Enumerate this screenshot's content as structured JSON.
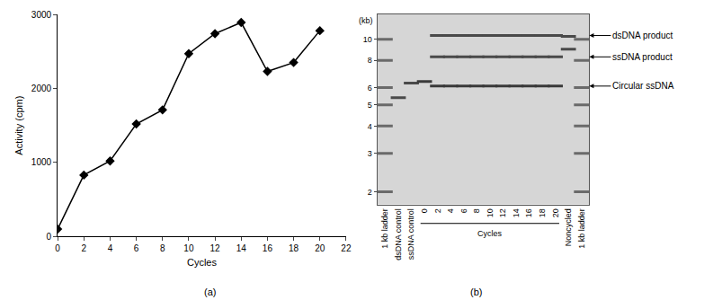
{
  "chart_data": [
    {
      "type": "line",
      "title": "(a)",
      "x": [
        0,
        2,
        4,
        6,
        8,
        10,
        12,
        14,
        16,
        18,
        20
      ],
      "values": [
        100,
        830,
        1020,
        1520,
        1710,
        2470,
        2740,
        2890,
        2230,
        2350,
        2780
      ],
      "xlim": [
        0,
        22
      ],
      "xticks": [
        0,
        2,
        4,
        6,
        8,
        10,
        12,
        14,
        16,
        18,
        20,
        22
      ],
      "ylim": [
        0,
        3000
      ],
      "yticks": [
        0,
        1000,
        2000,
        3000
      ],
      "xlabel": "Cycles",
      "ylabel": "Activity (cpm)",
      "color": "#000000",
      "marker": "diamond",
      "line_style": "solid",
      "grid": false
    },
    {
      "type": "gel",
      "title": "(b)",
      "categories": [
        "1 kb ladder",
        "dsDNA control",
        "ssDNA control",
        "0",
        "2",
        "4",
        "6",
        "8",
        "10",
        "12",
        "14",
        "16",
        "18",
        "20",
        "Noncycled",
        "1 kb ladder"
      ],
      "series": [
        {
          "values": [
            [
              10,
              8,
              6,
              5,
              4,
              3,
              2
            ],
            null,
            null,
            null,
            null,
            null,
            null,
            null,
            null,
            null,
            null,
            null,
            null,
            null,
            null,
            [
              10,
              8,
              6,
              5,
              4,
              3,
              2
            ]
          ],
          "color": "#6a6a6a",
          "marker": "line-ew"
        },
        {
          "values": [
            null,
            5.4,
            6.3,
            null,
            null,
            null,
            null,
            null,
            null,
            null,
            null,
            null,
            null,
            null,
            [
              10.3,
              9.0
            ],
            null
          ],
          "color": "#4a4a4a",
          "marker": "line-ew"
        },
        {
          "name": "dsDNA product",
          "values": [
            null,
            null,
            null,
            null,
            10.4,
            10.4,
            10.4,
            10.4,
            10.4,
            10.4,
            10.4,
            10.4,
            10.4,
            10.4,
            null,
            null
          ],
          "color": "#4a4a4a",
          "marker": "line-ew"
        },
        {
          "name": "ssDNA product",
          "values": [
            null,
            null,
            null,
            null,
            8.3,
            8.3,
            8.3,
            8.3,
            8.3,
            8.3,
            8.3,
            8.3,
            8.3,
            8.3,
            null,
            null
          ],
          "color": "#4a4a4a",
          "marker": "line-ew"
        },
        {
          "name": "Circular ssDNA",
          "values": [
            null,
            null,
            null,
            6.4,
            6.1,
            6.1,
            6.1,
            6.1,
            6.1,
            6.1,
            6.1,
            6.1,
            6.1,
            6.1,
            null,
            null
          ],
          "color": "#3a3a3a",
          "marker": "line-ew"
        }
      ],
      "ylim": [
        1.75,
        13
      ],
      "yticks": [
        2,
        3,
        4,
        5,
        6,
        8,
        10
      ],
      "log": "y",
      "ylabel": "(kb)",
      "annotations": [
        {
          "text": "Cycles",
          "categories": [
            "0",
            "20"
          ]
        }
      ],
      "grid": false
    }
  ]
}
